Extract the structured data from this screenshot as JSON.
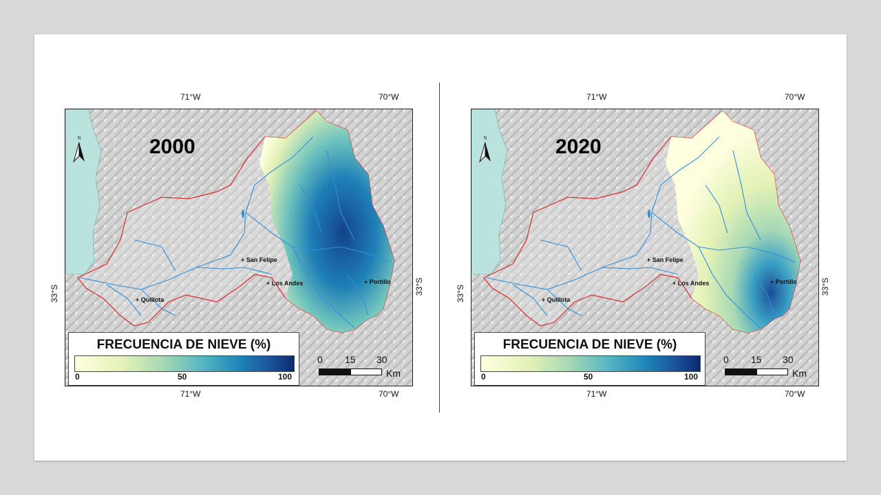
{
  "panels": [
    {
      "year": "2000",
      "coords": {
        "top_west": "71°W",
        "top_east": "70°W",
        "bottom_west": "71°W",
        "bottom_east": "70°W",
        "left_lat": "33°S",
        "right_lat": "33°S"
      },
      "cities": [
        "Quillota",
        "San Felipe",
        "Los Andes",
        "Portillo"
      ],
      "legend": {
        "title": "FRECUENCIA DE NIEVE (%)",
        "ticks": [
          "0",
          "50",
          "100"
        ]
      },
      "scale": {
        "labels": [
          "0",
          "15",
          "30"
        ],
        "unit": "Km"
      },
      "north_label": "N"
    },
    {
      "year": "2020",
      "coords": {
        "top_west": "71°W",
        "top_east": "70°W",
        "bottom_west": "71°W",
        "bottom_east": "70°W",
        "left_lat": "33°S",
        "right_lat": "33°S"
      },
      "cities": [
        "Quillota",
        "San Felipe",
        "Los Andes",
        "Portillo"
      ],
      "legend": {
        "title": "FRECUENCIA DE NIEVE (%)",
        "ticks": [
          "0",
          "50",
          "100"
        ]
      },
      "scale": {
        "labels": [
          "0",
          "15",
          "30"
        ],
        "unit": "Km"
      },
      "north_label": "N"
    }
  ],
  "colors": {
    "sea": "#b9e3dc",
    "basin_outline": "#e0282a",
    "rivers": "#2f8fdc",
    "terrain": "#d2d2d2",
    "snow_low": "#ffffe0",
    "snow_high": "#0c2a6e"
  }
}
